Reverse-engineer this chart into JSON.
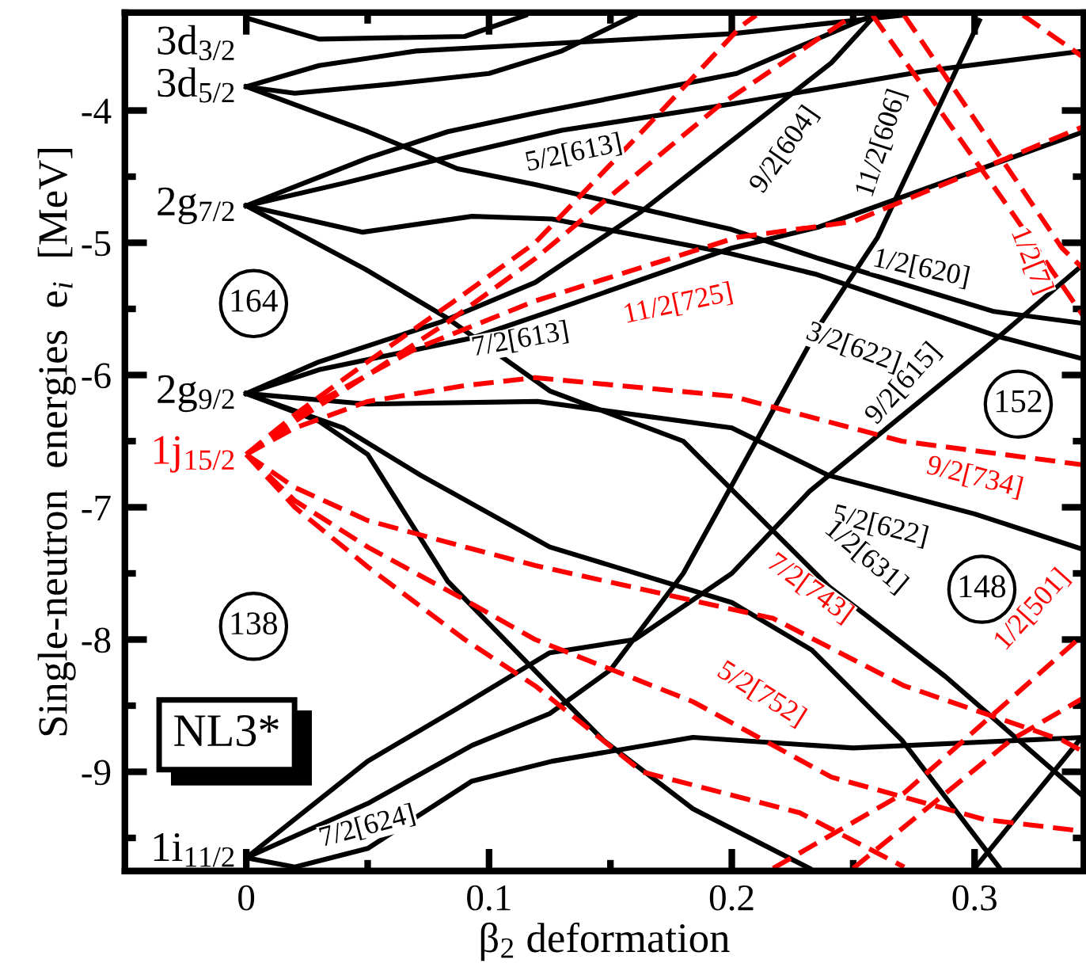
{
  "chart_data": {
    "type": "line",
    "xlabel": "β$_{2}$ deformation",
    "ylabel": "Single-neutron  energies  e$_{i}$  [MeV]",
    "xlim": [
      -0.05,
      0.345
    ],
    "ylim": [
      -9.75,
      -3.26
    ],
    "xticks": [
      0,
      {
        "value": 0.05,
        "label": null
      },
      0.1,
      {
        "value": 0.15,
        "label": null
      },
      0.2,
      {
        "value": 0.25,
        "label": null
      },
      0.3
    ],
    "yticks": [
      -4,
      {
        "value": -4.5,
        "label": null
      },
      -5,
      {
        "value": -5.5,
        "label": null
      },
      -6,
      {
        "value": -6.5,
        "label": null
      },
      -7,
      {
        "value": -7.5,
        "label": null
      },
      -8,
      {
        "value": -8.5,
        "label": null
      },
      -9,
      {
        "value": -9.5,
        "label": null
      }
    ],
    "grid": false,
    "legend": false,
    "marker": "none",
    "series": [
      {
        "color": "#000000",
        "line_style": "solid",
        "x": [
          0,
          0.03,
          0.09,
          0.115
        ],
        "values": [
          -3.3,
          -3.46,
          -3.44,
          -3.28
        ]
      },
      {
        "color": "#000000",
        "line_style": "solid",
        "x": [
          0,
          0.03,
          0.07,
          0.12,
          0.2,
          0.27
        ],
        "values": [
          -3.82,
          -3.66,
          -3.55,
          -3.5,
          -3.42,
          -3.28
        ]
      },
      {
        "color": "#000000",
        "line_style": "solid",
        "x": [
          0,
          0.02,
          0.06,
          0.1,
          0.13,
          0.16
        ],
        "values": [
          -3.82,
          -3.87,
          -3.8,
          -3.72,
          -3.55,
          -3.28
        ]
      },
      {
        "color": "#000000",
        "line_style": "solid",
        "x": [
          0,
          0.05,
          0.087,
          0.119,
          0.2,
          0.236,
          0.308,
          0.345
        ],
        "values": [
          -3.82,
          -4.16,
          -4.44,
          -4.56,
          -4.9,
          -5.12,
          -5.52,
          -5.61
        ]
      },
      {
        "color": "#000000",
        "line_style": "solid",
        "x": [
          0,
          0.05,
          0.083,
          0.119,
          0.202,
          0.258
        ],
        "values": [
          -4.72,
          -4.36,
          -4.16,
          -4.02,
          -3.72,
          -3.28
        ]
      },
      {
        "color": "#000000",
        "line_style": "solid",
        "x": [
          0,
          0.04,
          0.09,
          0.13,
          0.2,
          0.28,
          0.345
        ],
        "values": [
          -4.72,
          -4.55,
          -4.32,
          -4.15,
          -3.95,
          -3.7,
          -3.55
        ]
      },
      {
        "color": "#000000",
        "line_style": "solid",
        "x": [
          0,
          0.048,
          0.093,
          0.126,
          0.199,
          0.235,
          0.31,
          0.345
        ],
        "values": [
          -4.72,
          -4.92,
          -4.8,
          -4.82,
          -5.08,
          -5.24,
          -5.71,
          -5.88
        ]
      },
      {
        "color": "#000000",
        "line_style": "solid",
        "x": [
          0,
          0.049,
          0.082,
          0.125,
          0.18,
          0.24,
          0.288,
          0.345
        ],
        "values": [
          -4.72,
          -5.2,
          -5.56,
          -6.12,
          -6.5,
          -7.6,
          -8.28,
          -9.19
        ]
      },
      {
        "color": "#000000",
        "line_style": "solid",
        "x": [
          0,
          0.03,
          0.08,
          0.119,
          0.163,
          0.202,
          0.241,
          0.259
        ],
        "values": [
          -6.14,
          -5.9,
          -5.6,
          -5.3,
          -4.76,
          -4.2,
          -3.64,
          -3.28
        ]
      },
      {
        "color": "#000000",
        "line_style": "solid",
        "x": [
          0,
          0.03,
          0.093,
          0.125,
          0.2,
          0.236,
          0.345
        ],
        "values": [
          -6.14,
          -5.96,
          -5.72,
          -5.52,
          -5.04,
          -4.88,
          -4.16
        ]
      },
      {
        "color": "#000000",
        "line_style": "solid",
        "x": [
          0,
          0.05,
          0.12,
          0.2,
          0.24,
          0.3,
          0.345
        ],
        "values": [
          -6.14,
          -6.22,
          -6.2,
          -6.4,
          -6.76,
          -7.05,
          -7.32
        ]
      },
      {
        "color": "#000000",
        "line_style": "solid",
        "x": [
          0,
          0.03,
          0.05,
          0.083,
          0.125,
          0.147,
          0.184,
          0.232
        ],
        "values": [
          -6.14,
          -6.35,
          -6.6,
          -7.56,
          -8.35,
          -8.76,
          -9.28,
          -9.73
        ]
      },
      {
        "color": "#000000",
        "line_style": "solid",
        "x": [
          0,
          0.04,
          0.072,
          0.125,
          0.2,
          0.233,
          0.27,
          0.31
        ],
        "values": [
          -6.14,
          -6.4,
          -6.76,
          -7.3,
          -7.72,
          -8.08,
          -8.76,
          -9.72
        ]
      },
      {
        "color": "#000000",
        "line_style": "solid",
        "x": [
          0,
          0.05,
          0.087,
          0.125,
          0.16,
          0.2,
          0.232,
          0.31,
          0.345
        ],
        "values": [
          -9.65,
          -8.92,
          -8.52,
          -8.1,
          -8.0,
          -7.5,
          -6.88,
          -5.71,
          -5.16
        ]
      },
      {
        "color": "#000000",
        "line_style": "solid",
        "x": [
          0,
          0.05,
          0.093,
          0.125,
          0.15,
          0.18,
          0.21,
          0.237,
          0.26,
          0.302
        ],
        "values": [
          -9.65,
          -9.24,
          -8.8,
          -8.56,
          -8.23,
          -7.5,
          -6.5,
          -5.6,
          -4.96,
          -3.32
        ]
      },
      {
        "color": "#000000",
        "line_style": "solid",
        "x": [
          0,
          0.02,
          0.05,
          0.093,
          0.126,
          0.184,
          0.25,
          0.345
        ],
        "values": [
          -9.65,
          -9.72,
          -9.58,
          -9.07,
          -8.92,
          -8.74,
          -8.82,
          -8.74
        ]
      },
      {
        "color": "#000000",
        "line_style": "solid",
        "x": [
          0.3,
          0.345
        ],
        "values": [
          -9.73,
          -8.72
        ]
      },
      {
        "color": "#ff0000",
        "line_style": "dashed",
        "x": [
          0,
          0.02,
          0.05,
          0.083,
          0.119,
          0.195,
          0.25
        ],
        "values": [
          -6.6,
          -6.35,
          -6.0,
          -5.6,
          -5.12,
          -3.96,
          -3.28
        ]
      },
      {
        "color": "#ff0000",
        "line_style": "dashed",
        "x": [
          0,
          0.02,
          0.05,
          0.085,
          0.119,
          0.163,
          0.204,
          0.21
        ],
        "values": [
          -6.6,
          -6.3,
          -5.9,
          -5.45,
          -5.0,
          -4.16,
          -3.36,
          -3.28
        ]
      },
      {
        "color": "#ff0000",
        "line_style": "dashed",
        "x": [
          0,
          0.03,
          0.07,
          0.119,
          0.202,
          0.25,
          0.345
        ],
        "values": [
          -6.6,
          -6.2,
          -5.8,
          -5.44,
          -4.96,
          -4.84,
          -4.12
        ]
      },
      {
        "color": "#ff0000",
        "line_style": "dashed",
        "x": [
          0,
          0.02,
          0.05,
          0.09,
          0.119,
          0.2,
          0.27,
          0.345
        ],
        "values": [
          -6.6,
          -6.4,
          -6.2,
          -6.08,
          -6.02,
          -6.16,
          -6.5,
          -6.68
        ]
      },
      {
        "color": "#ff0000",
        "line_style": "dashed",
        "x": [
          0,
          0.02,
          0.05,
          0.09,
          0.119,
          0.217,
          0.271,
          0.336,
          0.345
        ],
        "values": [
          -6.6,
          -6.85,
          -7.1,
          -7.3,
          -7.44,
          -7.84,
          -8.35,
          -8.76,
          -8.85
        ]
      },
      {
        "color": "#ff0000",
        "line_style": "dashed",
        "x": [
          0,
          0.02,
          0.05,
          0.09,
          0.119,
          0.184,
          0.241,
          0.304,
          0.345
        ],
        "values": [
          -6.6,
          -6.95,
          -7.3,
          -7.7,
          -8.0,
          -8.47,
          -9.04,
          -9.36,
          -9.45
        ]
      },
      {
        "color": "#ff0000",
        "line_style": "dashed",
        "x": [
          0,
          0.02,
          0.05,
          0.09,
          0.119,
          0.163,
          0.228,
          0.271
        ],
        "values": [
          -6.6,
          -7.0,
          -7.45,
          -8.0,
          -8.35,
          -9.0,
          -9.31,
          -9.72
        ]
      },
      {
        "color": "#ff0000",
        "line_style": "dashed",
        "x": [
          0.217,
          0.271,
          0.345
        ],
        "values": [
          -9.73,
          -9.16,
          -7.96
        ]
      },
      {
        "color": "#ff0000",
        "line_style": "dashed",
        "x": [
          0.25,
          0.315,
          0.345
        ],
        "values": [
          -9.73,
          -8.76,
          -8.44
        ]
      },
      {
        "color": "#ff0000",
        "line_style": "dashed",
        "x": [
          0.258,
          0.315,
          0.345
        ],
        "values": [
          -3.28,
          -4.76,
          -5.56
        ]
      },
      {
        "color": "#ff0000",
        "line_style": "dashed",
        "x": [
          0.271,
          0.336,
          0.345
        ],
        "values": [
          -3.28,
          -5.04,
          -5.2
        ]
      },
      {
        "color": "#ff0000",
        "line_style": "dashed",
        "x": [
          0.32,
          0.345
        ],
        "values": [
          -3.28,
          -3.6
        ]
      }
    ],
    "annotations": [
      "3d$_{3/2}$",
      "3d$_{5/2}$",
      "2g$_{7/2}$",
      "2g$_{9/2}$",
      "1j$_{15/2}$",
      "1i$_{11/2}$",
      "164",
      "152",
      "148",
      "138",
      "5/2[613]",
      "9/2[604]",
      "11/2[606]",
      "1/2[620]",
      "1/2[7]",
      "7/2[613]",
      "11/2[725]",
      "3/2[622]",
      "9/2[615]",
      "9/2[734]",
      "5/2[622]",
      "1/2[631]",
      "7/2[743]",
      "1/2[501]",
      "5/2[752]",
      "7/2[624]",
      "NL3*"
    ]
  }
}
